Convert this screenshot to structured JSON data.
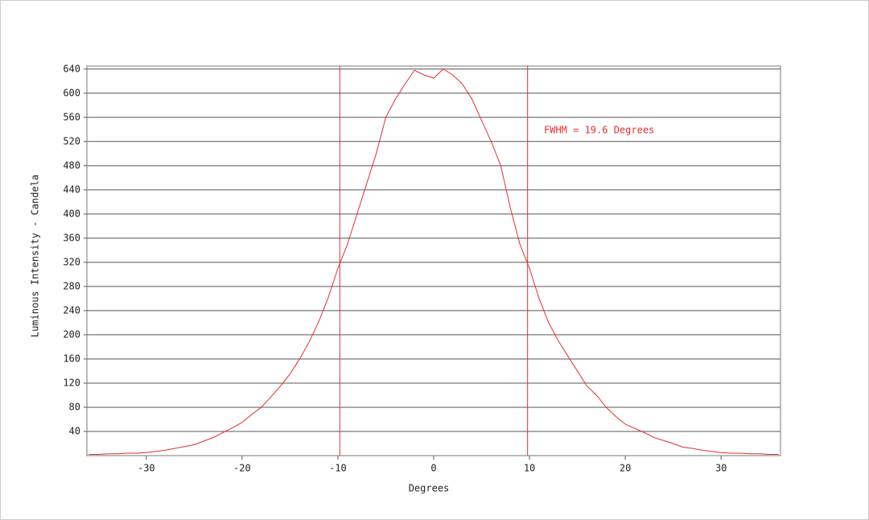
{
  "chart_data": {
    "type": "line",
    "annotation": "FWHM = 19.6 Degrees",
    "x_label": "Degrees",
    "y_label": "Luminous Intensity - Candela",
    "x": [
      -36,
      -35,
      -34,
      -33,
      -32,
      -31,
      -30,
      -29,
      -28,
      -27,
      -26,
      -25,
      -24,
      -23,
      -22,
      -21,
      -20,
      -19,
      -18,
      -17,
      -16,
      -15,
      -14,
      -13,
      -12,
      -11,
      -10,
      -9,
      -8,
      -7,
      -6,
      -5,
      -4,
      -3,
      -2,
      -1,
      0,
      1,
      2,
      3,
      4,
      5,
      6,
      7,
      8,
      9,
      10,
      11,
      12,
      13,
      14,
      15,
      16,
      17,
      18,
      19,
      20,
      21,
      22,
      23,
      24,
      25,
      26,
      27,
      28,
      29,
      30,
      31,
      32,
      33,
      34,
      35,
      36
    ],
    "series": [
      {
        "color": "#e03030",
        "values": [
          2,
          2,
          3,
          3,
          4,
          4,
          5,
          7,
          9,
          12,
          15,
          18,
          24,
          30,
          38,
          46,
          55,
          68,
          80,
          97,
          115,
          135,
          160,
          188,
          222,
          262,
          310,
          350,
          400,
          450,
          500,
          560,
          590,
          615,
          638,
          630,
          625,
          640,
          630,
          615,
          590,
          555,
          520,
          480,
          410,
          350,
          310,
          260,
          220,
          190,
          165,
          140,
          115,
          100,
          80,
          65,
          52,
          45,
          38,
          30,
          25,
          20,
          14,
          12,
          9,
          7,
          5,
          4,
          4,
          3,
          3,
          2,
          2
        ]
      }
    ],
    "vlines": [
      -9.8,
      9.8
    ],
    "vline_color": "#e03030",
    "xlim": [
      -36.2,
      36.2
    ],
    "ylim": [
      0,
      645
    ],
    "xticks": [
      -30,
      -20,
      -10,
      0,
      10,
      20,
      30
    ],
    "yticks": [
      40,
      80,
      120,
      160,
      200,
      240,
      280,
      320,
      360,
      400,
      440,
      480,
      520,
      560,
      600,
      640
    ],
    "grid": true
  }
}
